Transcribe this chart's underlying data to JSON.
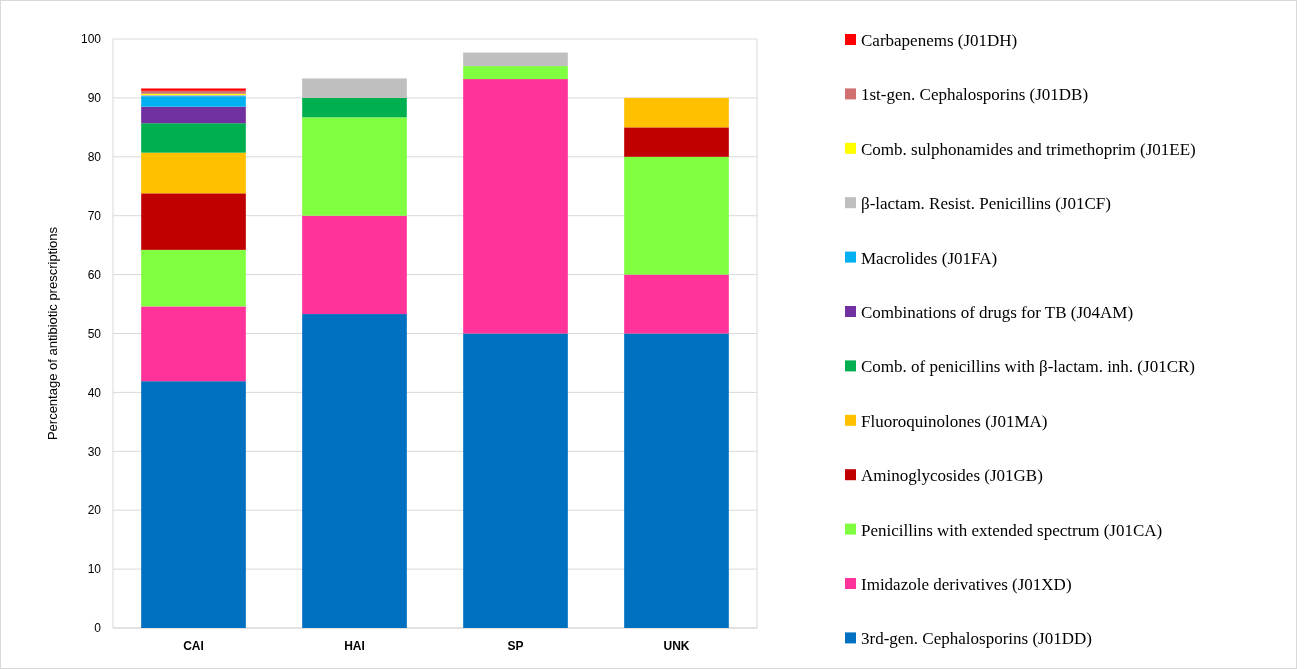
{
  "chart_data": {
    "type": "bar",
    "stacked": true,
    "ylabel": "Percentage of antibiotic prescriptions",
    "categories": [
      "CAI",
      "HAI",
      "SP",
      "UNK"
    ],
    "ylim": [
      0,
      100
    ],
    "yticks": [
      0,
      10,
      20,
      30,
      40,
      50,
      60,
      70,
      80,
      90,
      100
    ],
    "grid": "y",
    "legend": "right",
    "series": [
      {
        "name": "3rd-gen. Cephalosporins (J01DD)",
        "color": "#0070c0",
        "values": [
          41.9,
          53.3,
          50,
          50
        ]
      },
      {
        "name": "Imidazole derivatives (J01XD)",
        "color": "#ff3399",
        "values": [
          12.7,
          16.7,
          43.2,
          10
        ]
      },
      {
        "name": "Penicillins with extended spectrum (J01CA)",
        "color": "#80ff40",
        "values": [
          9.6,
          16.7,
          2.2,
          20
        ]
      },
      {
        "name": "Aminoglycosides (J01GB)",
        "color": "#c00000",
        "values": [
          9.6,
          null,
          null,
          5
        ]
      },
      {
        "name": "Fluoroquinolones (J01MA)",
        "color": "#ffc000",
        "values": [
          6.9,
          null,
          null,
          5
        ]
      },
      {
        "name": "Comb. of penicillins with β-lactam. inh. (J01CR)",
        "color": "#00b050",
        "values": [
          5.0,
          3.3,
          null,
          null
        ]
      },
      {
        "name": "Combinations of drugs for TB (J04AM)",
        "color": "#7030a0",
        "values": [
          2.8,
          null,
          null,
          null
        ]
      },
      {
        "name": "Macrolides (J01FA)",
        "color": "#00b0f0",
        "values": [
          1.8,
          null,
          null,
          null
        ]
      },
      {
        "name": "β-lactam. Resist. Penicillins (J01CF)",
        "color": "#bfbfbf",
        "values": [
          0.2,
          3.3,
          2.3,
          null
        ]
      },
      {
        "name": "Comb. sulphonamides and trimethoprim (J01EE)",
        "color": "#ffff00",
        "values": [
          0.2,
          null,
          null,
          null
        ]
      },
      {
        "name": "1st-gen. Cephalosporins (J01DB)",
        "color": "#d07070",
        "values": [
          0.5,
          null,
          null,
          null
        ]
      },
      {
        "name": "Carbapenems (J01DH)",
        "color": "#ff0000",
        "values": [
          0.4,
          null,
          null,
          null
        ]
      }
    ]
  }
}
